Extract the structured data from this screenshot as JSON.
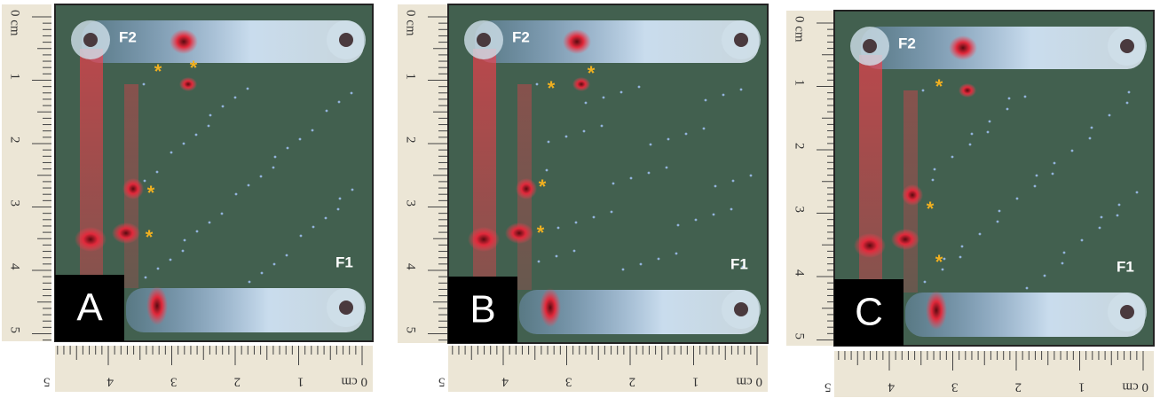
{
  "ruler": {
    "vertical": [
      "0 cm",
      "1",
      "2",
      "3",
      "4",
      "5"
    ],
    "horizontal": [
      "0 cm",
      "1",
      "2",
      "3",
      "4",
      "5"
    ]
  },
  "panels": [
    {
      "label": "A",
      "f1": "F1",
      "f2": "F2",
      "markers": [
        "*",
        "*",
        "*",
        "*"
      ]
    },
    {
      "label": "B",
      "f1": "F1",
      "f2": "F2",
      "markers": [
        "*",
        "*",
        "*",
        "*"
      ]
    },
    {
      "label": "C",
      "f1": "F1",
      "f2": "F2",
      "markers": [
        "*",
        "*",
        "*"
      ]
    }
  ]
}
